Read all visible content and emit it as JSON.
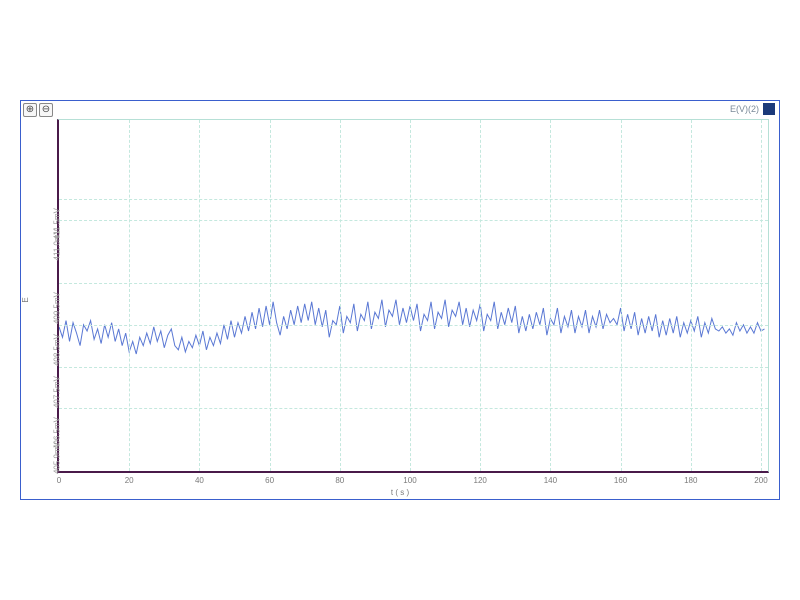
{
  "chart": {
    "type": "line",
    "legend_label": "E(V)(2)",
    "line_color": "#5a78d4",
    "line_width": 1.0,
    "background_color": "#ffffff",
    "grid_color": "#c4e8de",
    "axis_color": "#4a1a4a",
    "frame_color": "#3a5fcd",
    "xlabel": "t ( s )",
    "ylabel": "E",
    "xlim": [
      0,
      202
    ],
    "ylim": [
      405.0,
      413.4
    ],
    "x_ticks": [
      0,
      20,
      40,
      60,
      80,
      100,
      120,
      140,
      160,
      180,
      200
    ],
    "x_tick_labels": [
      "0",
      "20",
      "40",
      "60",
      "80",
      "100",
      "120",
      "140",
      "160",
      "180",
      "200"
    ],
    "y_ticks": [
      405.9,
      406.5,
      407.5,
      408.5,
      409.5,
      411.0,
      411.5
    ],
    "y_tick_labels": [
      "405.9mV",
      "406.5mV",
      "407.5mV",
      "408.5mV",
      "409.5mV",
      "411.0mV",
      "411.5mV"
    ],
    "y_grid_at": [
      406.5,
      407.5,
      408.5,
      409.5,
      411.0,
      411.5
    ],
    "x_grid_step": 20,
    "label_fontsize": 8,
    "tick_fontsize": 8,
    "legend_swatch_color": "#1b3a7a",
    "data": {
      "x": [
        0,
        1,
        2,
        3,
        4,
        5,
        6,
        7,
        8,
        9,
        10,
        11,
        12,
        13,
        14,
        15,
        16,
        17,
        18,
        19,
        20,
        21,
        22,
        23,
        24,
        25,
        26,
        27,
        28,
        29,
        30,
        31,
        32,
        33,
        34,
        35,
        36,
        37,
        38,
        39,
        40,
        41,
        42,
        43,
        44,
        45,
        46,
        47,
        48,
        49,
        50,
        51,
        52,
        53,
        54,
        55,
        56,
        57,
        58,
        59,
        60,
        61,
        62,
        63,
        64,
        65,
        66,
        67,
        68,
        69,
        70,
        71,
        72,
        73,
        74,
        75,
        76,
        77,
        78,
        79,
        80,
        81,
        82,
        83,
        84,
        85,
        86,
        87,
        88,
        89,
        90,
        91,
        92,
        93,
        94,
        95,
        96,
        97,
        98,
        99,
        100,
        101,
        102,
        103,
        104,
        105,
        106,
        107,
        108,
        109,
        110,
        111,
        112,
        113,
        114,
        115,
        116,
        117,
        118,
        119,
        120,
        121,
        122,
        123,
        124,
        125,
        126,
        127,
        128,
        129,
        130,
        131,
        132,
        133,
        134,
        135,
        136,
        137,
        138,
        139,
        140,
        141,
        142,
        143,
        144,
        145,
        146,
        147,
        148,
        149,
        150,
        151,
        152,
        153,
        154,
        155,
        156,
        157,
        158,
        159,
        160,
        161,
        162,
        163,
        164,
        165,
        166,
        167,
        168,
        169,
        170,
        171,
        172,
        173,
        174,
        175,
        176,
        177,
        178,
        179,
        180,
        181,
        182,
        183,
        184,
        185,
        186,
        187,
        188,
        189,
        190,
        191,
        192,
        193,
        194,
        195,
        196,
        197,
        198,
        199,
        200,
        201
      ],
      "y": [
        408.45,
        408.2,
        408.6,
        408.1,
        408.55,
        408.3,
        408.0,
        408.5,
        408.35,
        408.6,
        408.15,
        408.4,
        408.05,
        408.5,
        408.2,
        408.55,
        408.1,
        408.4,
        408.0,
        408.3,
        407.85,
        408.1,
        407.8,
        408.2,
        408.0,
        408.3,
        408.05,
        408.45,
        408.1,
        408.35,
        407.95,
        408.25,
        408.4,
        408.0,
        407.9,
        408.2,
        407.85,
        408.1,
        407.95,
        408.25,
        408.0,
        408.35,
        407.9,
        408.2,
        408.0,
        408.3,
        408.05,
        408.5,
        408.15,
        408.6,
        408.2,
        408.55,
        408.3,
        408.7,
        408.35,
        408.8,
        408.4,
        408.9,
        408.45,
        408.95,
        408.5,
        409.05,
        408.55,
        408.25,
        408.7,
        408.4,
        408.85,
        408.5,
        408.95,
        408.55,
        409.0,
        408.6,
        409.05,
        408.5,
        408.9,
        408.45,
        408.85,
        408.2,
        408.6,
        408.5,
        408.95,
        408.3,
        408.7,
        408.55,
        409.0,
        408.35,
        408.75,
        408.6,
        409.05,
        408.4,
        408.8,
        408.65,
        409.1,
        408.45,
        408.85,
        408.7,
        409.1,
        408.5,
        408.9,
        408.55,
        408.95,
        408.6,
        409.0,
        408.35,
        408.75,
        408.6,
        409.05,
        408.4,
        408.8,
        408.65,
        409.1,
        408.45,
        408.85,
        408.7,
        409.05,
        408.5,
        408.9,
        408.45,
        408.85,
        408.6,
        409.0,
        408.35,
        408.75,
        408.6,
        409.05,
        408.4,
        408.8,
        408.5,
        408.9,
        408.55,
        408.95,
        408.3,
        408.7,
        408.35,
        408.75,
        408.4,
        408.8,
        408.5,
        408.9,
        408.25,
        408.65,
        408.5,
        408.9,
        408.3,
        408.7,
        408.45,
        408.85,
        408.3,
        408.7,
        408.45,
        408.85,
        408.3,
        408.7,
        408.45,
        408.85,
        408.4,
        408.75,
        408.55,
        408.65,
        408.5,
        408.9,
        408.35,
        408.75,
        408.4,
        408.8,
        408.25,
        408.65,
        408.3,
        408.7,
        408.35,
        408.75,
        408.2,
        408.6,
        408.25,
        408.65,
        408.3,
        408.7,
        408.2,
        408.55,
        408.3,
        408.6,
        408.35,
        408.7,
        408.2,
        408.55,
        408.3,
        408.65,
        408.4,
        408.35,
        408.45,
        408.3,
        408.4,
        408.25,
        408.55,
        408.35,
        408.5,
        408.3,
        408.45,
        408.3,
        408.55,
        408.35,
        408.4
      ]
    }
  },
  "toolbar": {
    "btn1": "⊕",
    "btn2": "⊖"
  }
}
